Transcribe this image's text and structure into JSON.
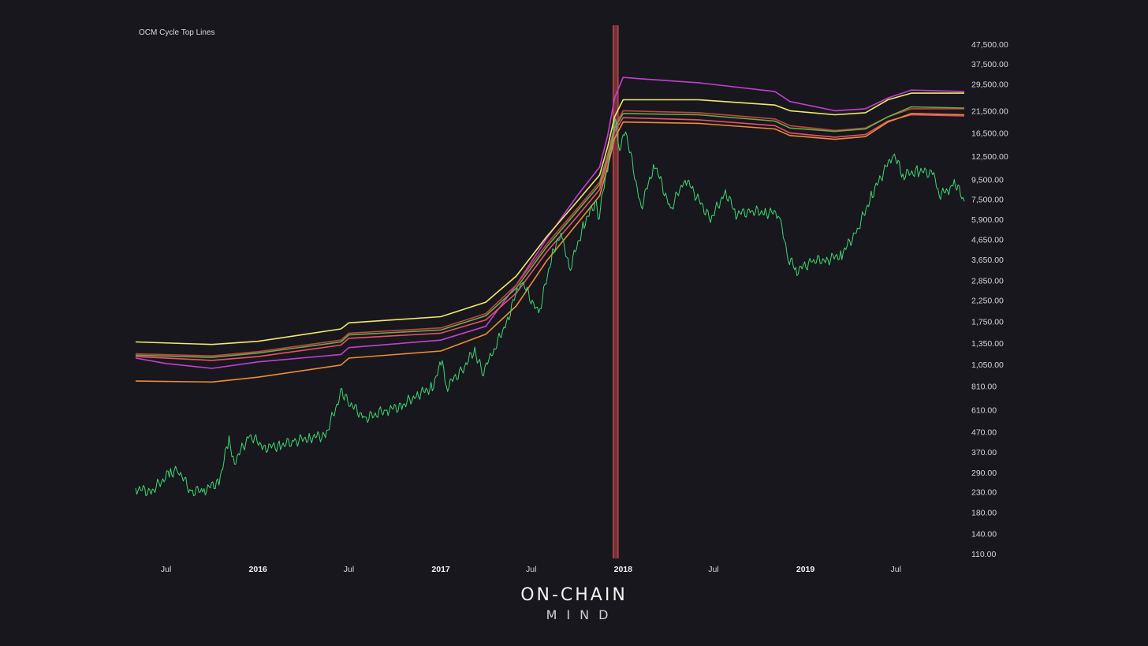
{
  "chart_data": {
    "type": "line",
    "title": "OCM Cycle Top Lines",
    "y_scale": "log",
    "ylim": [
      110,
      47500
    ],
    "y_ticks": [
      "47,500.00",
      "37,500.00",
      "29,500.00",
      "21,500.00",
      "16,500.00",
      "12,500.00",
      "9,500.00",
      "7,500.00",
      "5,900.00",
      "4,650.00",
      "3,650.00",
      "2,850.00",
      "2,250.00",
      "1,750.00",
      "1,350.00",
      "1,050.00",
      "810.00",
      "610.00",
      "470.00",
      "370.00",
      "290.00",
      "230.00",
      "180.00",
      "140.00",
      "110.00"
    ],
    "x_ticks": [
      {
        "label": "Jul",
        "date": "2015-07-01",
        "bold": false
      },
      {
        "label": "2016",
        "date": "2016-01-01",
        "bold": true
      },
      {
        "label": "Jul",
        "date": "2016-07-01",
        "bold": false
      },
      {
        "label": "2017",
        "date": "2017-01-01",
        "bold": true
      },
      {
        "label": "Jul",
        "date": "2017-07-01",
        "bold": false
      },
      {
        "label": "2018",
        "date": "2018-01-01",
        "bold": true
      },
      {
        "label": "Jul",
        "date": "2018-07-01",
        "bold": false
      },
      {
        "label": "2019",
        "date": "2019-01-01",
        "bold": true
      },
      {
        "label": "Jul",
        "date": "2019-07-01",
        "bold": false
      }
    ],
    "xlim": [
      "2015-05-01",
      "2019-11-15"
    ],
    "highlight_band": {
      "start": "2017-12-12",
      "end": "2017-12-22",
      "color": "#c0474d"
    },
    "series": [
      {
        "color": "#c43fd0",
        "points": [
          [
            "2015-05-01",
            1130
          ],
          [
            "2015-07-01",
            1060
          ],
          [
            "2015-10-01",
            1000
          ],
          [
            "2016-01-01",
            1080
          ],
          [
            "2016-06-15",
            1180
          ],
          [
            "2016-07-01",
            1280
          ],
          [
            "2017-01-01",
            1400
          ],
          [
            "2017-04-01",
            1650
          ],
          [
            "2017-06-01",
            2700
          ],
          [
            "2017-08-01",
            4700
          ],
          [
            "2017-10-01",
            7800
          ],
          [
            "2017-11-15",
            11000
          ],
          [
            "2017-12-01",
            16000
          ],
          [
            "2017-12-15",
            25000
          ],
          [
            "2018-01-01",
            32000
          ],
          [
            "2018-02-01",
            31500
          ],
          [
            "2018-06-01",
            30000
          ],
          [
            "2018-11-01",
            27000
          ],
          [
            "2018-12-01",
            24000
          ],
          [
            "2019-03-01",
            21500
          ],
          [
            "2019-05-01",
            22000
          ],
          [
            "2019-06-15",
            25000
          ],
          [
            "2019-08-01",
            27500
          ],
          [
            "2019-11-15",
            27000
          ]
        ]
      },
      {
        "color": "#f2ea6a",
        "points": [
          [
            "2015-05-01",
            1370
          ],
          [
            "2015-10-01",
            1330
          ],
          [
            "2016-01-01",
            1380
          ],
          [
            "2016-06-15",
            1600
          ],
          [
            "2016-07-01",
            1720
          ],
          [
            "2017-01-01",
            1850
          ],
          [
            "2017-04-01",
            2200
          ],
          [
            "2017-06-01",
            3000
          ],
          [
            "2017-08-01",
            4800
          ],
          [
            "2017-10-01",
            7300
          ],
          [
            "2017-11-15",
            10000
          ],
          [
            "2017-12-01",
            14000
          ],
          [
            "2017-12-15",
            20000
          ],
          [
            "2018-01-01",
            24500
          ],
          [
            "2018-06-01",
            24500
          ],
          [
            "2018-11-01",
            23000
          ],
          [
            "2018-12-01",
            21500
          ],
          [
            "2019-03-01",
            20500
          ],
          [
            "2019-05-01",
            21000
          ],
          [
            "2019-06-15",
            24500
          ],
          [
            "2019-08-01",
            26500
          ],
          [
            "2019-11-15",
            26500
          ]
        ]
      },
      {
        "color": "#c0473b",
        "points": [
          [
            "2015-05-01",
            1190
          ],
          [
            "2015-10-01",
            1160
          ],
          [
            "2016-01-01",
            1220
          ],
          [
            "2016-06-15",
            1400
          ],
          [
            "2016-07-01",
            1520
          ],
          [
            "2017-01-01",
            1620
          ],
          [
            "2017-04-01",
            1920
          ],
          [
            "2017-06-01",
            2700
          ],
          [
            "2017-08-01",
            4400
          ],
          [
            "2017-10-01",
            6700
          ],
          [
            "2017-11-15",
            9200
          ],
          [
            "2017-12-01",
            12800
          ],
          [
            "2017-12-15",
            18000
          ],
          [
            "2018-01-01",
            21500
          ],
          [
            "2018-06-01",
            21000
          ],
          [
            "2018-11-01",
            19500
          ],
          [
            "2018-12-01",
            18000
          ],
          [
            "2019-03-01",
            17000
          ],
          [
            "2019-05-01",
            17500
          ],
          [
            "2019-06-15",
            20000
          ],
          [
            "2019-08-01",
            22000
          ],
          [
            "2019-11-15",
            22000
          ]
        ]
      },
      {
        "color": "#6fa94a",
        "points": [
          [
            "2015-05-01",
            1170
          ],
          [
            "2015-10-01",
            1140
          ],
          [
            "2016-01-01",
            1200
          ],
          [
            "2016-06-15",
            1370
          ],
          [
            "2016-07-01",
            1490
          ],
          [
            "2017-01-01",
            1580
          ],
          [
            "2017-04-01",
            1870
          ],
          [
            "2017-06-01",
            2600
          ],
          [
            "2017-08-01",
            4250
          ],
          [
            "2017-10-01",
            6500
          ],
          [
            "2017-11-15",
            8900
          ],
          [
            "2017-12-01",
            12400
          ],
          [
            "2017-12-15",
            17500
          ],
          [
            "2018-01-01",
            20800
          ],
          [
            "2018-06-01",
            20500
          ],
          [
            "2018-11-01",
            19000
          ],
          [
            "2018-12-01",
            17500
          ],
          [
            "2019-03-01",
            16800
          ],
          [
            "2019-05-01",
            17300
          ],
          [
            "2019-06-15",
            20000
          ],
          [
            "2019-08-01",
            22500
          ],
          [
            "2019-11-15",
            22200
          ]
        ]
      },
      {
        "color": "#e8506e",
        "points": [
          [
            "2015-05-01",
            1150
          ],
          [
            "2015-10-01",
            1100
          ],
          [
            "2016-01-01",
            1150
          ],
          [
            "2016-06-15",
            1320
          ],
          [
            "2016-07-01",
            1430
          ],
          [
            "2017-01-01",
            1520
          ],
          [
            "2017-04-01",
            1780
          ],
          [
            "2017-06-01",
            2450
          ],
          [
            "2017-08-01",
            4000
          ],
          [
            "2017-10-01",
            6100
          ],
          [
            "2017-11-15",
            8400
          ],
          [
            "2017-12-01",
            11800
          ],
          [
            "2017-12-15",
            16800
          ],
          [
            "2018-01-01",
            19800
          ],
          [
            "2018-06-01",
            19300
          ],
          [
            "2018-11-01",
            18000
          ],
          [
            "2018-12-01",
            16500
          ],
          [
            "2019-03-01",
            15700
          ],
          [
            "2019-05-01",
            16200
          ],
          [
            "2019-06-15",
            19000
          ],
          [
            "2019-08-01",
            20500
          ],
          [
            "2019-11-15",
            20200
          ]
        ]
      },
      {
        "color": "#f08c33",
        "points": [
          [
            "2015-05-01",
            860
          ],
          [
            "2015-10-01",
            850
          ],
          [
            "2016-01-01",
            900
          ],
          [
            "2016-06-15",
            1040
          ],
          [
            "2016-07-01",
            1130
          ],
          [
            "2017-01-01",
            1230
          ],
          [
            "2017-04-01",
            1500
          ],
          [
            "2017-06-01",
            2100
          ],
          [
            "2017-08-01",
            3600
          ],
          [
            "2017-10-01",
            5600
          ],
          [
            "2017-11-15",
            7800
          ],
          [
            "2017-12-01",
            11000
          ],
          [
            "2017-12-15",
            15500
          ],
          [
            "2018-01-01",
            18800
          ],
          [
            "2018-06-01",
            18500
          ],
          [
            "2018-11-01",
            17300
          ],
          [
            "2018-12-01",
            16000
          ],
          [
            "2019-03-01",
            15300
          ],
          [
            "2019-05-01",
            15800
          ],
          [
            "2019-06-15",
            18800
          ],
          [
            "2019-08-01",
            20800
          ],
          [
            "2019-11-15",
            20500
          ]
        ]
      },
      {
        "color": "#3fd672",
        "kind": "price",
        "points": [
          [
            "2015-05-01",
            240
          ],
          [
            "2015-06-01",
            230
          ],
          [
            "2015-07-10",
            290
          ],
          [
            "2015-07-25",
            300
          ],
          [
            "2015-08-20",
            230
          ],
          [
            "2015-09-15",
            235
          ],
          [
            "2015-10-15",
            260
          ],
          [
            "2015-11-04",
            430
          ],
          [
            "2015-11-15",
            330
          ],
          [
            "2015-12-15",
            450
          ],
          [
            "2016-01-15",
            390
          ],
          [
            "2016-02-15",
            400
          ],
          [
            "2016-03-15",
            420
          ],
          [
            "2016-04-15",
            440
          ],
          [
            "2016-05-15",
            450
          ],
          [
            "2016-06-17",
            760
          ],
          [
            "2016-07-01",
            670
          ],
          [
            "2016-08-02",
            550
          ],
          [
            "2016-09-15",
            610
          ],
          [
            "2016-10-15",
            640
          ],
          [
            "2016-11-15",
            730
          ],
          [
            "2016-12-15",
            800
          ],
          [
            "2017-01-04",
            1100
          ],
          [
            "2017-01-12",
            800
          ],
          [
            "2017-02-15",
            1000
          ],
          [
            "2017-03-10",
            1250
          ],
          [
            "2017-03-25",
            950
          ],
          [
            "2017-04-15",
            1200
          ],
          [
            "2017-05-15",
            1800
          ],
          [
            "2017-06-10",
            2900
          ],
          [
            "2017-07-16",
            1900
          ],
          [
            "2017-08-15",
            4200
          ],
          [
            "2017-09-01",
            4900
          ],
          [
            "2017-09-15",
            3200
          ],
          [
            "2017-10-15",
            5600
          ],
          [
            "2017-11-08",
            7400
          ],
          [
            "2017-11-12",
            5900
          ],
          [
            "2017-12-01",
            11000
          ],
          [
            "2017-12-17",
            19000
          ],
          [
            "2017-12-25",
            14000
          ],
          [
            "2018-01-06",
            17000
          ],
          [
            "2018-02-06",
            6800
          ],
          [
            "2018-03-05",
            11500
          ],
          [
            "2018-04-06",
            6600
          ],
          [
            "2018-05-05",
            9700
          ],
          [
            "2018-06-25",
            5900
          ],
          [
            "2018-07-25",
            8200
          ],
          [
            "2018-08-15",
            6300
          ],
          [
            "2018-09-15",
            6500
          ],
          [
            "2018-10-15",
            6400
          ],
          [
            "2018-11-10",
            6350
          ],
          [
            "2018-11-25",
            3800
          ],
          [
            "2018-12-15",
            3200
          ],
          [
            "2019-01-15",
            3600
          ],
          [
            "2019-02-15",
            3650
          ],
          [
            "2019-03-15",
            3900
          ],
          [
            "2019-04-15",
            5200
          ],
          [
            "2019-05-15",
            8000
          ],
          [
            "2019-06-26",
            13000
          ],
          [
            "2019-07-15",
            10000
          ],
          [
            "2019-08-15",
            10500
          ],
          [
            "2019-09-15",
            10200
          ],
          [
            "2019-09-26",
            8000
          ],
          [
            "2019-10-15",
            8300
          ],
          [
            "2019-10-26",
            9300
          ],
          [
            "2019-11-15",
            7300
          ]
        ]
      }
    ]
  },
  "brand": {
    "line1": "ON-CHAIN",
    "line2": "MIND"
  }
}
